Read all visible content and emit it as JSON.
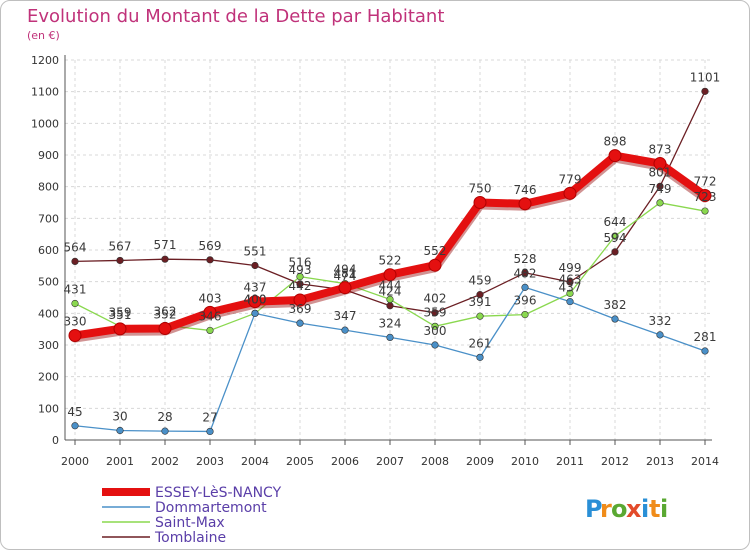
{
  "header": {
    "title": "Evolution du Montant de la Dette par Habitant",
    "unit": "(en €)"
  },
  "brand": {
    "logo_text": "Proxiti",
    "letters": [
      {
        "ch": "P",
        "color": "#2a8fd6"
      },
      {
        "ch": "r",
        "color": "#f08c1a"
      },
      {
        "ch": "o",
        "color": "#5aa832"
      },
      {
        "ch": "x",
        "color": "#e34b2a"
      },
      {
        "ch": "i",
        "color": "#2a8fd6"
      },
      {
        "ch": "t",
        "color": "#f08c1a"
      },
      {
        "ch": "i",
        "color": "#5aa832"
      }
    ]
  },
  "chart_data": {
    "type": "line",
    "title": "Evolution du Montant de la Dette par Habitant",
    "ylabel": "(en €)",
    "xlabel": "",
    "ylim": [
      0,
      1200
    ],
    "yticks": [
      0,
      100,
      200,
      300,
      400,
      500,
      600,
      700,
      800,
      900,
      1000,
      1100,
      1200
    ],
    "grid": true,
    "legend_position": "bottom-left",
    "x": [
      "2000",
      "2001",
      "2002",
      "2003",
      "2004",
      "2005",
      "2006",
      "2007",
      "2008",
      "2009",
      "2010",
      "2011",
      "2012",
      "2013",
      "2014"
    ],
    "series": [
      {
        "name": "Tomblaine",
        "color": "#6b1f24",
        "values": [
          564,
          567,
          571,
          569,
          551,
          493,
          474,
          424,
          402,
          459,
          528,
          499,
          594,
          801,
          1101
        ]
      },
      {
        "name": "Saint-Max",
        "color": "#8ad84f",
        "values": [
          431,
          359,
          362,
          346,
          400,
          516,
          494,
          444,
          359,
          391,
          396,
          463,
          644,
          749,
          723
        ]
      },
      {
        "name": "Dommartemont",
        "color": "#4a90c8",
        "values": [
          45,
          30,
          28,
          27,
          400,
          369,
          347,
          324,
          300,
          261,
          482,
          437,
          382,
          332,
          281
        ]
      },
      {
        "name": "ESSEY-LèS-NANCY",
        "color": "#e41010",
        "values": [
          330,
          351,
          352,
          403,
          437,
          442,
          481,
          522,
          552,
          750,
          746,
          779,
          898,
          873,
          772
        ]
      }
    ]
  }
}
